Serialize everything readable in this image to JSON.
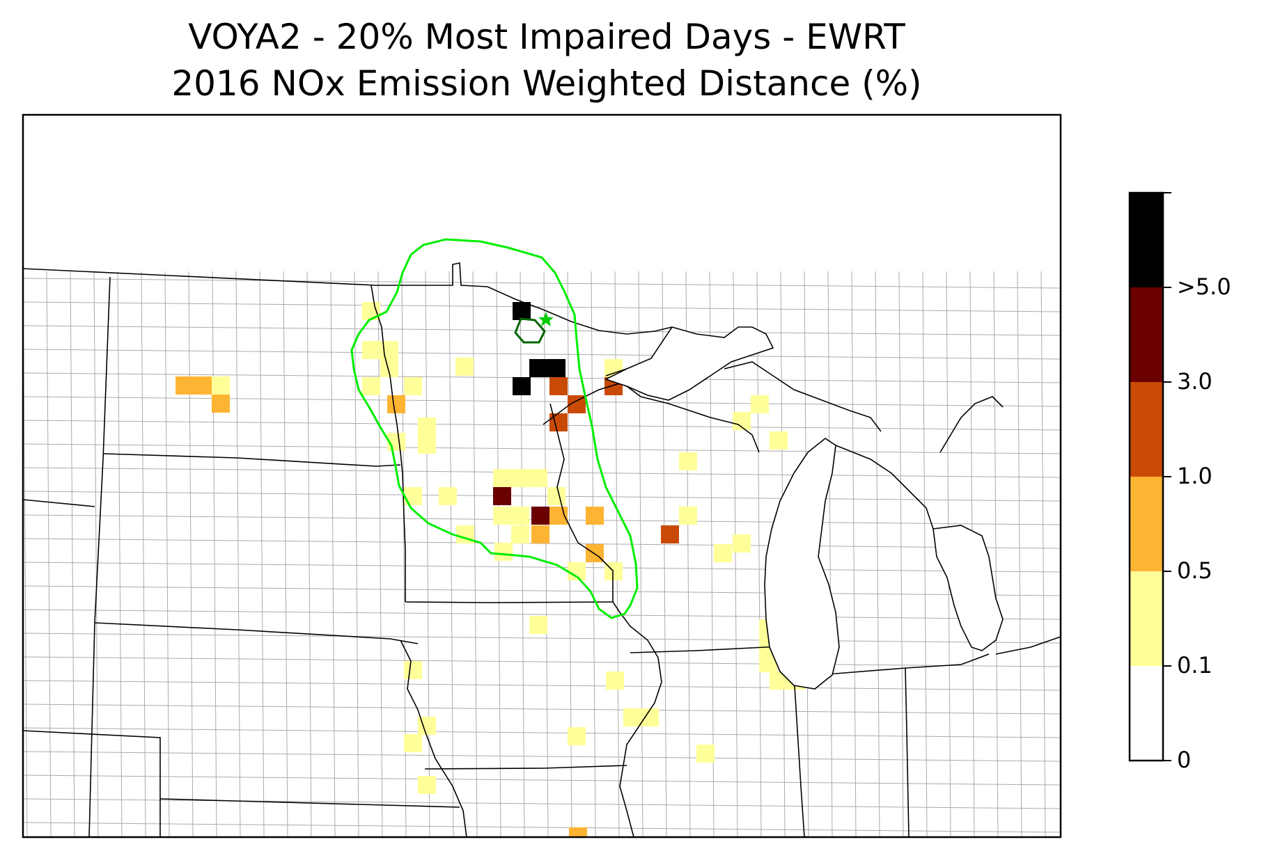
{
  "title": {
    "line1": "VOYA2 - 20% Most Impaired Days - EWRT",
    "line2": "2016 NOx Emission Weighted Distance (%)"
  },
  "colorbar": {
    "bins": [
      {
        "label": "0",
        "color": "#ffffff"
      },
      {
        "label": "0.1",
        "color": "#ffff99"
      },
      {
        "label": "0.5",
        "color": "#fdb433"
      },
      {
        "label": "1.0",
        "color": "#c94a05"
      },
      {
        "label": "3.0",
        "color": "#6a0000"
      },
      {
        "label": ">5.0",
        "color": "#000000"
      }
    ]
  },
  "chart_data": {
    "type": "heatmap",
    "color_scale": [
      {
        "range": "0 - 0.1",
        "color": "#ffffff"
      },
      {
        "range": "0.1 - 0.5",
        "color": "#ffff99"
      },
      {
        "range": "0.5 - 1.0",
        "color": "#fdb433"
      },
      {
        "range": "1.0 - 3.0",
        "color": "#c94a05"
      },
      {
        "range": "3.0 - 5.0",
        "color": "#6a0000"
      },
      {
        "range": ">5.0",
        "color": "#000000"
      }
    ],
    "colors": {
      "outer_contour": "#00ee00",
      "inner_contour": "#006400",
      "state_borders": "#000000",
      "county_borders": "#aaaaaa"
    },
    "site_marker": "star"
  }
}
